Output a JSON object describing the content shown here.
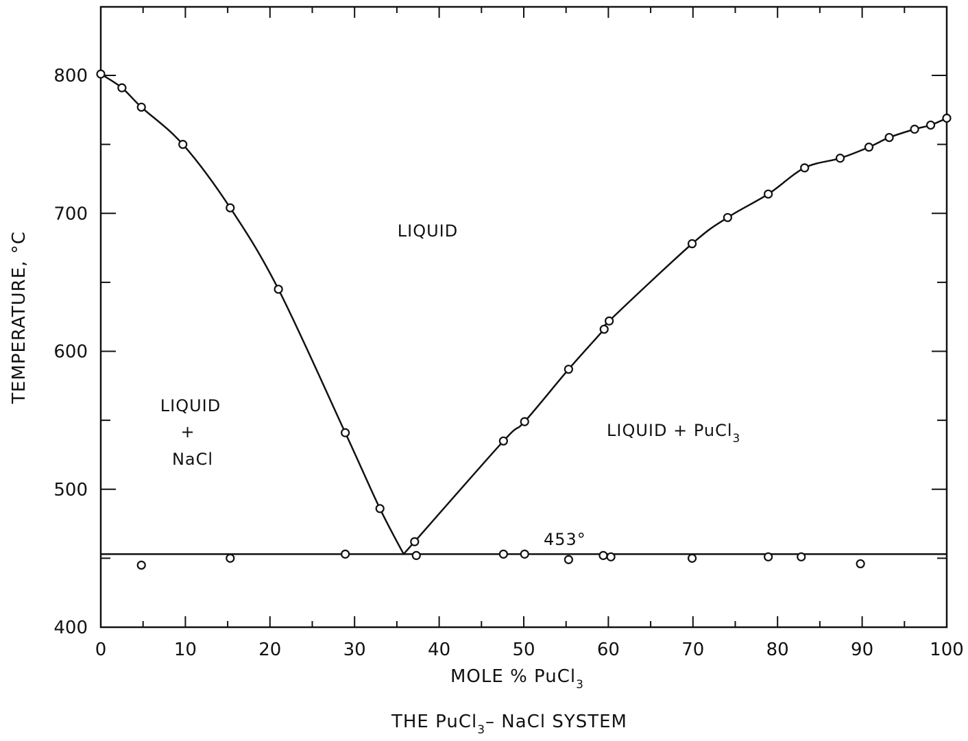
{
  "chart_data": {
    "type": "scatter",
    "title": "THE PuCl₃– NaCl SYSTEM",
    "xlabel": "MOLE % PuCl₃",
    "ylabel": "TEMPERATURE, °C",
    "xlim": [
      0,
      100
    ],
    "ylim": [
      400,
      850
    ],
    "x_ticks": [
      0,
      10,
      20,
      30,
      40,
      50,
      60,
      70,
      80,
      90,
      100
    ],
    "y_tick_labels": [
      400,
      500,
      600,
      700,
      800
    ],
    "grid": false,
    "legend": "none",
    "series": [
      {
        "x": [
          0,
          2.5,
          4.8,
          9.7,
          15.3,
          21.0,
          28.9,
          33.0,
          37.1,
          47.6,
          50.1,
          55.3,
          59.5,
          60.1,
          69.9,
          74.1,
          78.9,
          83.2,
          87.4,
          90.8,
          93.2,
          96.2,
          98.1,
          100
        ],
        "y": [
          801,
          791,
          777,
          750,
          704,
          645,
          541,
          486,
          462,
          535,
          549,
          587,
          616,
          622,
          678,
          697,
          714,
          733,
          740,
          748,
          755,
          761,
          764,
          769
        ]
      },
      {
        "x": [
          4.8,
          15.3,
          28.9,
          37.3,
          47.6,
          50.1,
          55.3,
          59.4,
          60.3,
          69.9,
          78.9,
          82.8,
          89.8
        ],
        "y": [
          445,
          450,
          453,
          452,
          453,
          453,
          449,
          452,
          451,
          450,
          451,
          451,
          446
        ]
      }
    ],
    "eutectic": {
      "x": 35.8,
      "y": 453
    },
    "annotations": {
      "liquid": "LIQUID",
      "left_region_line1": "LIQUID",
      "left_region_line2": "+",
      "left_region_line3": "NaCl",
      "right_region_main": "LIQUID + PuCl",
      "right_region_sub": "3",
      "eutectic_label": "453°"
    }
  },
  "labels": {
    "xlabel_main": "MOLE % PuCl",
    "xlabel_sub": "3",
    "caption_a": "THE PuCl",
    "caption_sub": "3",
    "caption_b": "– NaCl SYSTEM",
    "ylabel": "TEMPERATURE, °C"
  }
}
